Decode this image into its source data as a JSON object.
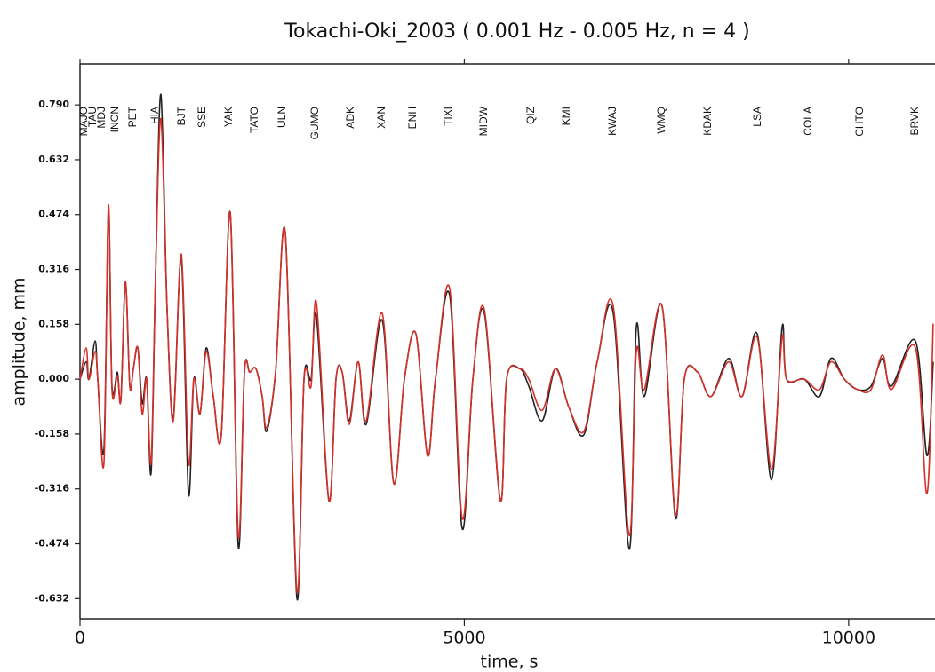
{
  "chart_data": {
    "type": "line",
    "title": "Tokachi-Oki_2003 ( 0.001 Hz - 0.005 Hz, n = 4 )",
    "xlabel": "time, s",
    "ylabel": "amplitude,  mm",
    "xlim": [
      0,
      11100
    ],
    "ylim": [
      -0.69,
      0.908
    ],
    "xticks": [
      0,
      5000,
      10000
    ],
    "yticks": [
      {
        "value": -0.632,
        "label": "-0.632"
      },
      {
        "value": -0.474,
        "label": "-0.474"
      },
      {
        "value": -0.316,
        "label": "-0.316"
      },
      {
        "value": -0.158,
        "label": "-0.158"
      },
      {
        "value": 0,
        "label": "0.000"
      },
      {
        "value": 0.158,
        "label": "0.158"
      },
      {
        "value": 0.316,
        "label": "0.316"
      },
      {
        "value": 0.474,
        "label": "0.474"
      },
      {
        "value": 0.632,
        "label": "0.632"
      },
      {
        "value": 0.79,
        "label": "0.790"
      }
    ],
    "stations": [
      {
        "label": "MAJO",
        "x": 58
      },
      {
        "label": "TAU",
        "x": 173
      },
      {
        "label": "MDJ",
        "x": 289
      },
      {
        "label": "INCN",
        "x": 462
      },
      {
        "label": "PET",
        "x": 694
      },
      {
        "label": "HIA",
        "x": 983
      },
      {
        "label": "BJT",
        "x": 1329
      },
      {
        "label": "SSE",
        "x": 1595
      },
      {
        "label": "YAK",
        "x": 1942
      },
      {
        "label": "TATO",
        "x": 2277
      },
      {
        "label": "ULN",
        "x": 2636
      },
      {
        "label": "GUMO",
        "x": 3064
      },
      {
        "label": "ADK",
        "x": 3526
      },
      {
        "label": "XAN",
        "x": 3931
      },
      {
        "label": "ENH",
        "x": 4335
      },
      {
        "label": "TIXI",
        "x": 4798
      },
      {
        "label": "MIDW",
        "x": 5260
      },
      {
        "label": "QIZ",
        "x": 5873
      },
      {
        "label": "KMI",
        "x": 6335
      },
      {
        "label": "KWAJ",
        "x": 6936
      },
      {
        "label": "WMQ",
        "x": 7572
      },
      {
        "label": "KDAK",
        "x": 8173
      },
      {
        "label": "LSA",
        "x": 8821
      },
      {
        "label": "COLA",
        "x": 9480
      },
      {
        "label": "CHTO",
        "x": 10150
      },
      {
        "label": "BRVK",
        "x": 10867
      }
    ],
    "x": [
      0,
      81,
      116,
      197,
      231,
      312,
      370,
      416,
      486,
      532,
      590,
      648,
      694,
      752,
      809,
      867,
      925,
      983,
      1052,
      1133,
      1214,
      1318,
      1411,
      1480,
      1561,
      1642,
      1734,
      1838,
      1954,
      2058,
      2139,
      2208,
      2289,
      2370,
      2428,
      2544,
      2671,
      2821,
      2914,
      3006,
      3076,
      3238,
      3330,
      3411,
      3503,
      3619,
      3723,
      3931,
      4082,
      4220,
      4371,
      4521,
      4625,
      4810,
      4972,
      5111,
      5261,
      5469,
      5550,
      5723,
      5839,
      6013,
      6186,
      6359,
      6556,
      6729,
      6938,
      7146,
      7238,
      7342,
      7573,
      7747,
      7862,
      8036,
      8209,
      8441,
      8614,
      8811,
      8996,
      9134,
      9192,
      9423,
      9620,
      9770,
      9944,
      10117,
      10291,
      10441,
      10557,
      10869,
      11019,
      11100
    ],
    "series": [
      {
        "color": "#222222",
        "values": [
          0,
          0.05,
          0,
          0.11,
          0,
          -0.2,
          0.49,
          -0.02,
          0.02,
          -0.06,
          0.28,
          -0.02,
          0.03,
          0.09,
          -0.07,
          0,
          -0.27,
          0.3,
          0.82,
          0.2,
          -0.11,
          0.35,
          -0.33,
          0,
          -0.1,
          0.09,
          -0.05,
          -0.16,
          0.48,
          -0.48,
          0.02,
          0.02,
          0.03,
          -0.05,
          -0.15,
          0.02,
          0.42,
          -0.63,
          0,
          0,
          0.18,
          -0.35,
          0,
          0.02,
          -0.12,
          0.05,
          -0.13,
          0.17,
          -0.3,
          0,
          0.13,
          -0.22,
          0,
          0.24,
          -0.43,
          0,
          0.19,
          -0.35,
          0,
          0.03,
          -0.02,
          -0.12,
          0.03,
          -0.08,
          -0.16,
          0.05,
          0.19,
          -0.49,
          0.15,
          -0.05,
          0.21,
          -0.4,
          0,
          0.02,
          -0.05,
          0.06,
          -0.05,
          0.13,
          -0.29,
          0.15,
          0,
          0,
          -0.05,
          0.06,
          0,
          -0.03,
          -0.02,
          0.06,
          -0.02,
          0.11,
          -0.22,
          0.05
        ]
      },
      {
        "color": "#d4302a",
        "values": [
          0,
          0.09,
          0,
          0.08,
          0,
          -0.24,
          0.5,
          -0.03,
          0.01,
          -0.06,
          0.28,
          -0.02,
          0.03,
          0.09,
          -0.1,
          0,
          -0.24,
          0.3,
          0.75,
          0.2,
          -0.12,
          0.36,
          -0.24,
          0,
          -0.1,
          0.08,
          -0.05,
          -0.16,
          0.48,
          -0.45,
          0.02,
          0.02,
          0.03,
          -0.05,
          -0.14,
          0.02,
          0.42,
          -0.61,
          0,
          -0.02,
          0.22,
          -0.35,
          0,
          0.02,
          -0.13,
          0.05,
          -0.12,
          0.19,
          -0.3,
          0,
          0.13,
          -0.22,
          0,
          0.26,
          -0.4,
          0,
          0.2,
          -0.35,
          0,
          0.03,
          0,
          -0.09,
          0.03,
          -0.08,
          -0.15,
          0.05,
          0.21,
          -0.45,
          0.08,
          -0.03,
          0.21,
          -0.39,
          0,
          0.02,
          -0.05,
          0.05,
          -0.05,
          0.12,
          -0.26,
          0.12,
          0,
          0,
          -0.03,
          0.05,
          0,
          -0.03,
          -0.03,
          0.07,
          -0.03,
          0.09,
          -0.33,
          0.16
        ]
      }
    ]
  }
}
